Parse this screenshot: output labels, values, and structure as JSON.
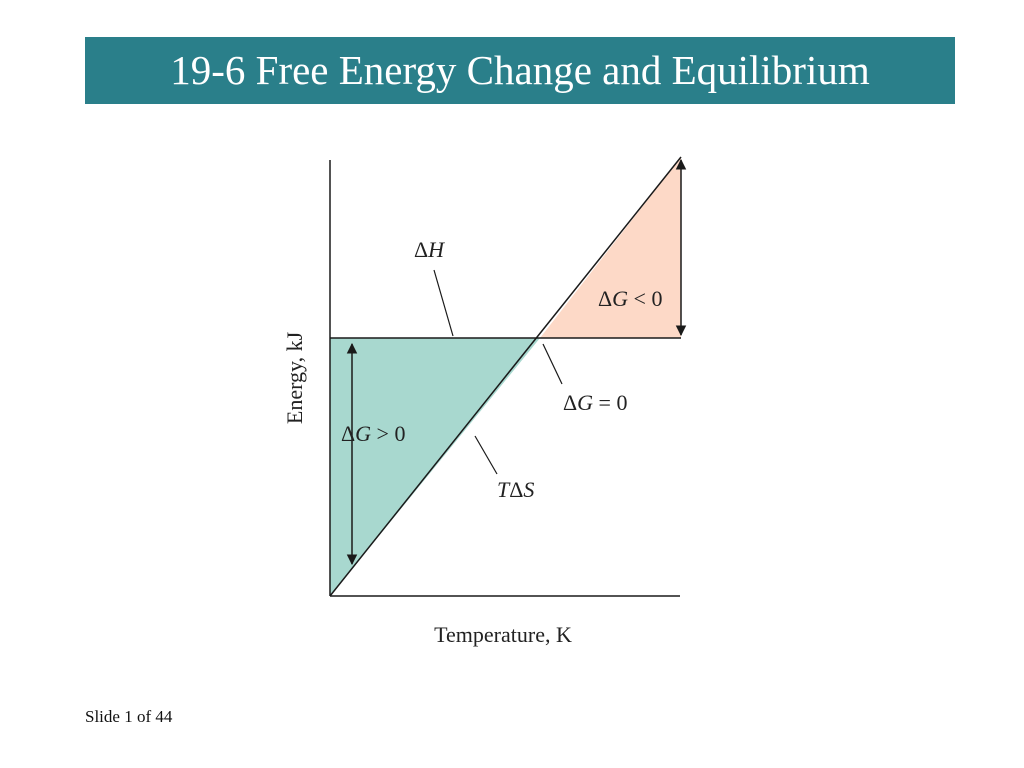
{
  "slide": {
    "title": "19-6 Free Energy Change and Equilibrium",
    "number_text": "Slide 1 of 44"
  },
  "diagram": {
    "x_axis_label": "Temperature, K",
    "y_axis_label": "Energy, kJ",
    "enthalpy_label": {
      "delta": "Δ",
      "symbol": "H"
    },
    "entropy_label": {
      "prefix": "T",
      "delta": "Δ",
      "symbol": "S"
    },
    "dg_positive_label": {
      "delta": "Δ",
      "symbol": "G",
      "relation": " > 0"
    },
    "dg_negative_label": {
      "delta": "Δ",
      "symbol": "G",
      "relation": " < 0"
    },
    "dg_zero_label": {
      "delta": "Δ",
      "symbol": "G",
      "relation": " = 0"
    },
    "colors": {
      "title_bar": "#2a7f8a",
      "dg_positive_region": "#a8d8cf",
      "dg_negative_region": "#fdd9c7",
      "lines": "#1a1a1a"
    }
  }
}
